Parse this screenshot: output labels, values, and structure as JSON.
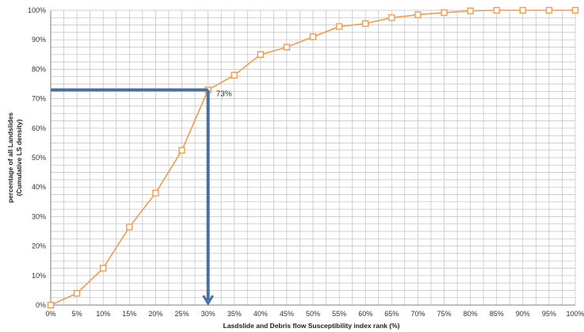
{
  "chart_data": {
    "type": "line",
    "title": "",
    "xlabel": "Lasdslide and Debris flow Susceptibility index rank (%)",
    "ylabel_lines": [
      "percentage of all Landslides",
      "(Cumulative LS density)"
    ],
    "x": [
      0,
      5,
      10,
      15,
      20,
      25,
      30,
      35,
      40,
      45,
      50,
      55,
      60,
      65,
      70,
      75,
      80,
      85,
      90,
      95,
      100
    ],
    "series": [
      {
        "values": [
          0,
          4,
          12.5,
          26.5,
          38,
          52.5,
          73,
          78,
          85,
          87.5,
          91,
          94.5,
          95.5,
          97.5,
          98.5,
          99.2,
          99.8,
          100,
          100,
          100,
          100
        ],
        "color": "#f39c4f"
      }
    ],
    "xlim": [
      0,
      100
    ],
    "ylim": [
      0,
      100
    ],
    "x_ticks": [
      "0%",
      "5%",
      "10%",
      "15%",
      "20%",
      "25%",
      "30%",
      "35%",
      "40%",
      "45%",
      "50%",
      "55%",
      "60%",
      "65%",
      "70%",
      "75%",
      "80%",
      "85%",
      "90%",
      "95%",
      "100%"
    ],
    "y_ticks": [
      "0%",
      "10%",
      "20%",
      "30%",
      "40%",
      "50%",
      "60%",
      "70%",
      "80%",
      "90%",
      "100%"
    ],
    "grid": true,
    "annotation": {
      "label": "73%",
      "x": 30,
      "y": 73,
      "arrow_color": "#4a6fa5"
    }
  }
}
